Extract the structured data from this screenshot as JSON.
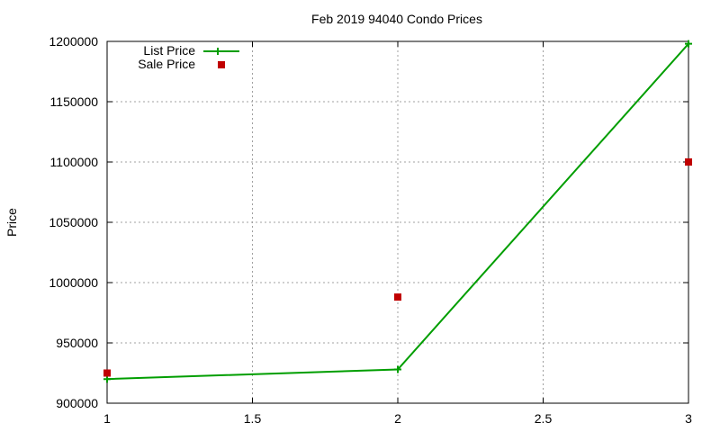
{
  "chart_data": {
    "type": "line",
    "title": "Feb 2019 94040 Condo Prices",
    "xlabel": "",
    "ylabel": "Price",
    "xlim": [
      1,
      3
    ],
    "ylim": [
      900000,
      1200000
    ],
    "x_ticks": [
      "1",
      "1.5",
      "2",
      "2.5",
      "3"
    ],
    "y_ticks": [
      "900000",
      "950000",
      "1000000",
      "1050000",
      "1100000",
      "1150000",
      "1200000"
    ],
    "grid": true,
    "legend_position": "top-left",
    "x": [
      1,
      2,
      3
    ],
    "series": [
      {
        "name": "List Price",
        "style": "linespoints",
        "color": "#009e00",
        "values": [
          920000,
          928000,
          1198000
        ]
      },
      {
        "name": "Sale Price",
        "style": "points",
        "color": "#c00000",
        "values": [
          925000,
          988000,
          1100000
        ]
      }
    ]
  }
}
